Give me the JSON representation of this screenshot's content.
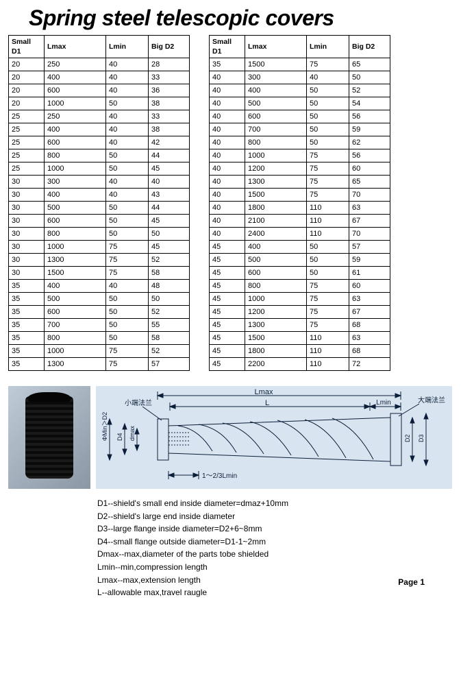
{
  "title": "Spring steel telescopic covers",
  "tables": {
    "columns": [
      "Small D1",
      "Lmax",
      "Lmin",
      "Big D2"
    ],
    "left_rows": [
      [
        20,
        250,
        40,
        28
      ],
      [
        20,
        400,
        40,
        33
      ],
      [
        20,
        600,
        40,
        36
      ],
      [
        20,
        1000,
        50,
        38
      ],
      [
        25,
        250,
        40,
        33
      ],
      [
        25,
        400,
        40,
        38
      ],
      [
        25,
        600,
        40,
        42
      ],
      [
        25,
        800,
        50,
        44
      ],
      [
        25,
        1000,
        50,
        45
      ],
      [
        30,
        300,
        40,
        40
      ],
      [
        30,
        400,
        40,
        43
      ],
      [
        30,
        500,
        50,
        44
      ],
      [
        30,
        600,
        50,
        45
      ],
      [
        30,
        800,
        50,
        50
      ],
      [
        30,
        1000,
        75,
        45
      ],
      [
        30,
        1300,
        75,
        52
      ],
      [
        30,
        1500,
        75,
        58
      ],
      [
        35,
        400,
        40,
        48
      ],
      [
        35,
        500,
        50,
        50
      ],
      [
        35,
        600,
        50,
        52
      ],
      [
        35,
        700,
        50,
        55
      ],
      [
        35,
        800,
        50,
        58
      ],
      [
        35,
        1000,
        75,
        52
      ],
      [
        35,
        1300,
        75,
        57
      ]
    ],
    "right_rows": [
      [
        35,
        1500,
        75,
        65
      ],
      [
        40,
        300,
        40,
        50
      ],
      [
        40,
        400,
        50,
        52
      ],
      [
        40,
        500,
        50,
        54
      ],
      [
        40,
        600,
        50,
        56
      ],
      [
        40,
        700,
        50,
        59
      ],
      [
        40,
        800,
        50,
        62
      ],
      [
        40,
        1000,
        75,
        56
      ],
      [
        40,
        1200,
        75,
        60
      ],
      [
        40,
        1300,
        75,
        65
      ],
      [
        40,
        1500,
        75,
        70
      ],
      [
        40,
        1800,
        110,
        63
      ],
      [
        40,
        2100,
        110,
        67
      ],
      [
        40,
        2400,
        110,
        70
      ],
      [
        45,
        400,
        50,
        57
      ],
      [
        45,
        500,
        50,
        59
      ],
      [
        45,
        600,
        50,
        61
      ],
      [
        45,
        800,
        75,
        60
      ],
      [
        45,
        1000,
        75,
        63
      ],
      [
        45,
        1200,
        75,
        67
      ],
      [
        45,
        1300,
        75,
        68
      ],
      [
        45,
        1500,
        110,
        63
      ],
      [
        45,
        1800,
        110,
        68
      ],
      [
        45,
        2200,
        110,
        72
      ]
    ]
  },
  "diagram_labels": {
    "small_flange": "小端法兰",
    "big_flange": "大端法兰",
    "Lmax": "Lmax",
    "L": "L",
    "Lmin": "Lmin",
    "phi_min_d2": "ΦMin＞D2",
    "D4": "D4",
    "dmax": "dmax",
    "D2": "D2",
    "D3": "D3",
    "bottom_gap": "1～2/3Lmin"
  },
  "definitions": [
    "D1--shield's small end inside diameter=dmaz+10mm",
    "D2--shield's large end inside diameter",
    "D3--large flange inside diameter=D2+6~8mm",
    "D4--small flange outside diameter=D1-1~2mm",
    "Dmax--max,diameter of the parts tobe shielded",
    "Lmin--min,compression length",
    "Lmax--max,extension length",
    "L--allowable max,travel raugle"
  ],
  "page_number": "Page 1",
  "colors": {
    "text": "#000000",
    "border": "#000000",
    "diagram_bg": "#d8e4ef",
    "photo_bg_light": "#bfcbd6",
    "photo_bg_dark": "#8a97a4",
    "diagram_line": "#0b1f3a"
  }
}
